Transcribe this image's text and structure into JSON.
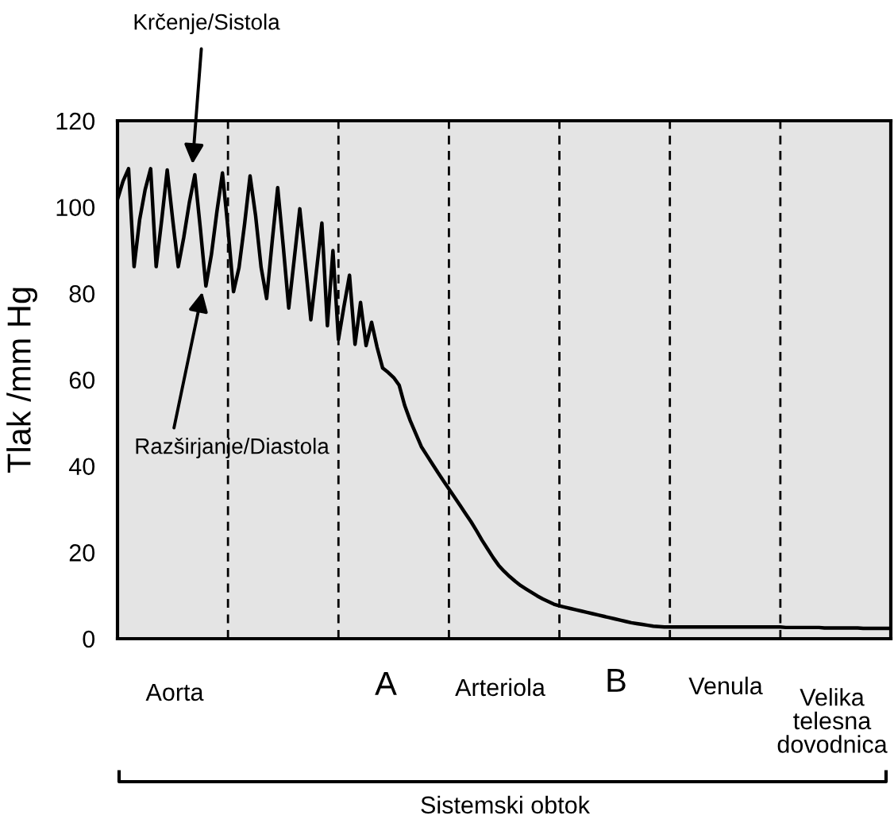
{
  "chart_data": {
    "type": "line",
    "ylabel": "Tlak /mm Hg",
    "categories": [
      null,
      null,
      null,
      null,
      null,
      null,
      null,
      null,
      null,
      null,
      null,
      null,
      null,
      null,
      null,
      null,
      null,
      null,
      null,
      null,
      null,
      null,
      null,
      null,
      null,
      null,
      null,
      null,
      null,
      null,
      null,
      null,
      null,
      null,
      null,
      null,
      null,
      null,
      null,
      null,
      null,
      null,
      null,
      null,
      null,
      null,
      null,
      null,
      null,
      null,
      null,
      null,
      null,
      null,
      null,
      null,
      null,
      null,
      null,
      null,
      null,
      null,
      null,
      null,
      null,
      null,
      null,
      null,
      null,
      null,
      null,
      null,
      null,
      null,
      null,
      null,
      null,
      null,
      null,
      null,
      null,
      null,
      null,
      null,
      null,
      null,
      null,
      null,
      null,
      null,
      null,
      null,
      null,
      null,
      null,
      null,
      null,
      null,
      null,
      null,
      null,
      null,
      null,
      null,
      null,
      null,
      null,
      null,
      null,
      null,
      null,
      null,
      null,
      null,
      null,
      null,
      null,
      null,
      null,
      null,
      null,
      null,
      null,
      null,
      null,
      null,
      null,
      null,
      null,
      null,
      null,
      null,
      null,
      null,
      null,
      null,
      null,
      null,
      null,
      null,
      null
    ],
    "series": [
      {
        "color": "#000000",
        "values": [
          101.8,
          106,
          108.9,
          86.2,
          97,
          104,
          108.9,
          86.2,
          97,
          108.6,
          97,
          86.2,
          93,
          101,
          107.5,
          95,
          81.7,
          89,
          99,
          107.9,
          95,
          80.4,
          86,
          96,
          107.2,
          98,
          86,
          78.8,
          92,
          104.5,
          91,
          76.6,
          88,
          99.6,
          87,
          73.9,
          85,
          96.3,
          72.5,
          89.9,
          69.3,
          77,
          84.2,
          68.2,
          77.9,
          67.9,
          73.3,
          67.5,
          62.7,
          61.7,
          60.5,
          58.7,
          54,
          50.5,
          47.5,
          44.5,
          42.5,
          40.5,
          38.5,
          36.6,
          34.7,
          32.8,
          30.9,
          29,
          27.1,
          25,
          22.8,
          20.8,
          18.8,
          17,
          15.6,
          14.4,
          13.3,
          12.3,
          11.5,
          10.7,
          9.9,
          9.2,
          8.6,
          8,
          7.6,
          7.3,
          7,
          6.7,
          6.4,
          6.1,
          5.8,
          5.5,
          5.2,
          4.9,
          4.6,
          4.3,
          4,
          3.7,
          3.5,
          3.3,
          3.1,
          2.9,
          2.8,
          2.7,
          2.7,
          2.7,
          2.7,
          2.7,
          2.7,
          2.7,
          2.7,
          2.7,
          2.7,
          2.7,
          2.7,
          2.7,
          2.7,
          2.7,
          2.7,
          2.7,
          2.7,
          2.7,
          2.7,
          2.7,
          2.7,
          2.6,
          2.6,
          2.6,
          2.6,
          2.6,
          2.6,
          2.6,
          2.5,
          2.5,
          2.5,
          2.5,
          2.5,
          2.5,
          2.5,
          2.4,
          2.4,
          2.4,
          2.4,
          2.4,
          2.4
        ]
      }
    ],
    "ylim": [
      0,
      120
    ],
    "yticks": [
      0,
      20,
      40,
      60,
      80,
      100,
      120
    ],
    "annotations": [
      "Krčenje/Sistola",
      "Razširjanje/Diastola",
      "Aorta",
      "A",
      "Arteriola",
      "B",
      "Venula",
      "Velika telesna dovodnica",
      "Sistemski obtok"
    ],
    "grid": false,
    "legend": false,
    "marker": "none",
    "line_style": "solid"
  }
}
